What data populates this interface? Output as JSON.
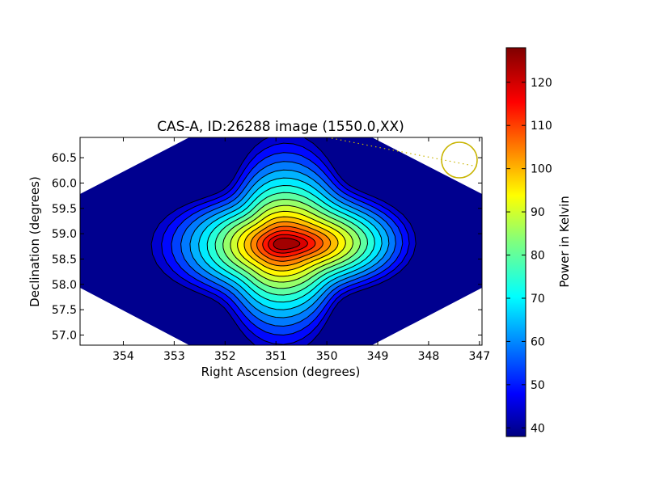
{
  "chart_data": {
    "type": "heatmap",
    "title": "CAS-A, ID:26288 image (1550.0,XX)",
    "xlabel": "Right Ascension (degrees)",
    "ylabel": "Declination (degrees)",
    "xlim": [
      354.85,
      346.95
    ],
    "ylim": [
      56.8,
      60.9
    ],
    "x_ticks": [
      "354",
      "353",
      "352",
      "351",
      "350",
      "349",
      "348",
      "347"
    ],
    "y_ticks": [
      "57.0",
      "57.5",
      "58.0",
      "58.5",
      "59.0",
      "59.5",
      "60.0",
      "60.5"
    ],
    "peak": {
      "ra": 350.85,
      "dec": 58.8,
      "value": 127
    },
    "background_level": 40,
    "contour_levels": [
      45,
      50,
      55,
      60,
      65,
      70,
      75,
      80,
      85,
      90,
      95,
      100,
      105,
      110,
      115,
      120,
      125
    ],
    "beam_circle": {
      "ra": 347.5,
      "dec": 60.45
    },
    "colorbar": {
      "label": "Power in Kelvin",
      "range": [
        38,
        128
      ],
      "ticks": [
        "40",
        "50",
        "60",
        "70",
        "80",
        "90",
        "100",
        "110",
        "120"
      ],
      "colormap": "jet"
    }
  }
}
